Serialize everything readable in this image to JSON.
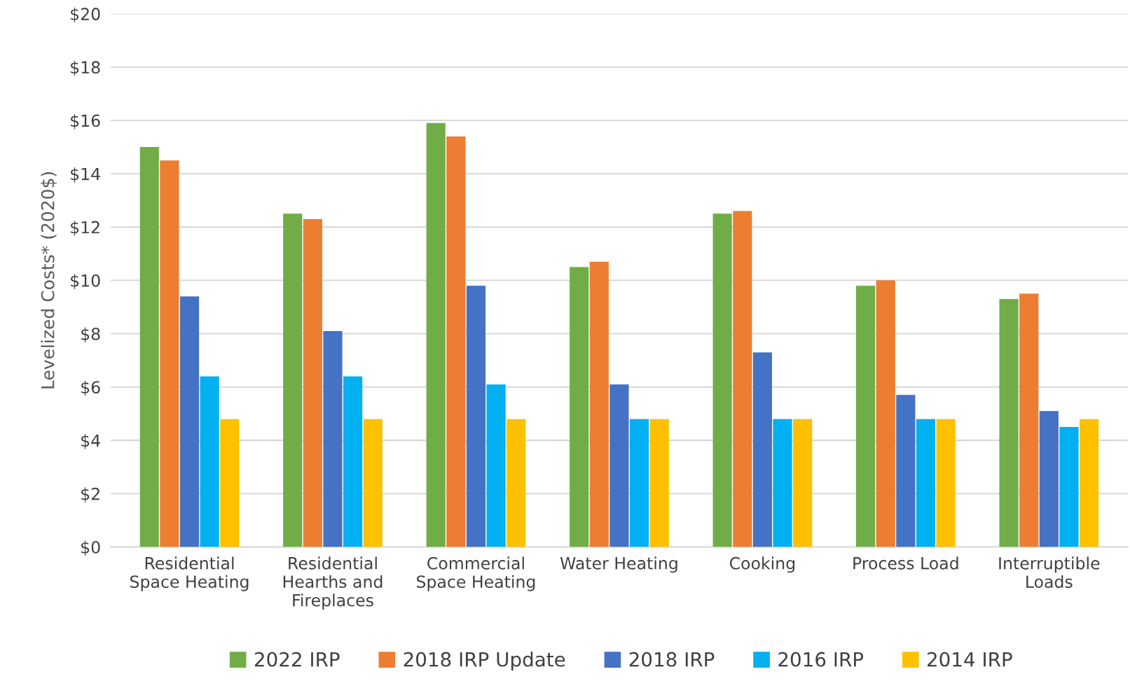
{
  "chart_data": {
    "type": "bar",
    "ylabel": "Levelized Costs* (2020$)",
    "categories": [
      "Residential\nSpace Heating",
      "Residential\nHearths and\nFireplaces",
      "Commercial\nSpace Heating",
      "Water Heating",
      "Cooking",
      "Process Load",
      "Interruptible\nLoads"
    ],
    "series": [
      {
        "name": "2022 IRP",
        "color": "#70ad47",
        "values": [
          15.0,
          12.5,
          15.9,
          10.5,
          12.5,
          9.8,
          9.3
        ]
      },
      {
        "name": "2018 IRP Update",
        "color": "#ed7d31",
        "values": [
          14.5,
          12.3,
          15.4,
          10.7,
          12.6,
          10.0,
          9.5
        ]
      },
      {
        "name": "2018 IRP",
        "color": "#4472c4",
        "values": [
          9.4,
          8.1,
          9.8,
          6.1,
          7.3,
          5.7,
          5.1
        ]
      },
      {
        "name": "2016 IRP",
        "color": "#00b0f0",
        "values": [
          6.4,
          6.4,
          6.1,
          4.8,
          4.8,
          4.8,
          4.5
        ]
      },
      {
        "name": "2014 IRP",
        "color": "#ffc000",
        "values": [
          4.8,
          4.8,
          4.8,
          4.8,
          4.8,
          4.8,
          4.8
        ]
      }
    ],
    "ylim": [
      0,
      20
    ],
    "yticks": [
      {
        "value": 0,
        "label": "$0"
      },
      {
        "value": 2,
        "label": "$2"
      },
      {
        "value": 4,
        "label": "$4"
      },
      {
        "value": 6,
        "label": "$6"
      },
      {
        "value": 8,
        "label": "$8"
      },
      {
        "value": 10,
        "label": "$10"
      },
      {
        "value": 12,
        "label": "$12"
      },
      {
        "value": 14,
        "label": "$14"
      },
      {
        "value": 16,
        "label": "$16"
      },
      {
        "value": 18,
        "label": "$18"
      },
      {
        "value": 20,
        "label": "$20"
      }
    ],
    "grid": "y",
    "legend": "bottom"
  }
}
